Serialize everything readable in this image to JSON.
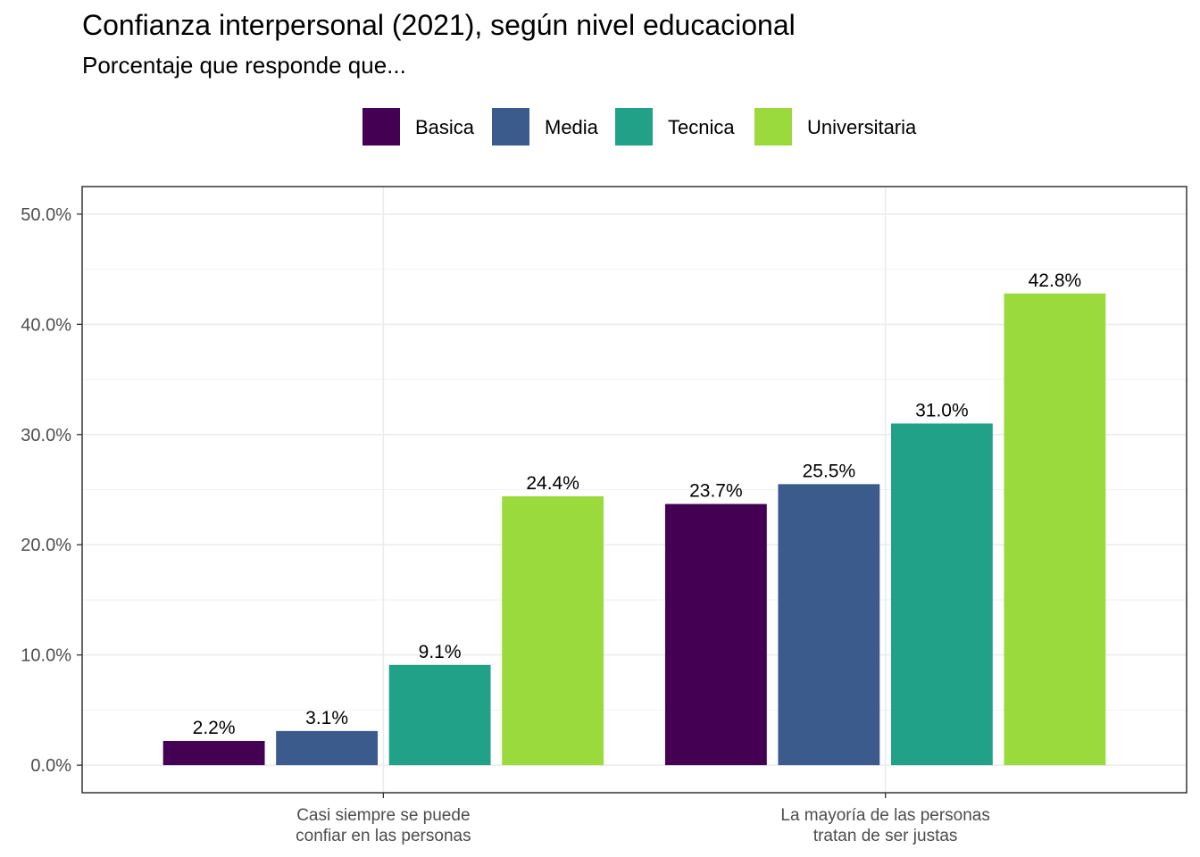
{
  "title": "Confianza interpersonal (2021), según nivel educacional",
  "subtitle": "Porcentaje que responde que...",
  "chart_data": {
    "type": "bar",
    "categories": [
      [
        "Casi siempre se puede",
        "confiar en las personas"
      ],
      [
        "La mayoría de las personas",
        "tratan de ser justas"
      ]
    ],
    "series": [
      {
        "name": "Basica",
        "color": "#440154",
        "values": [
          2.2,
          23.7
        ],
        "labels": [
          "2.2%",
          "23.7%"
        ]
      },
      {
        "name": "Media",
        "color": "#3B5B8D",
        "values": [
          3.1,
          25.5
        ],
        "labels": [
          "3.1%",
          "25.5%"
        ]
      },
      {
        "name": "Tecnica",
        "color": "#21A288",
        "values": [
          9.1,
          31.0
        ],
        "labels": [
          "9.1%",
          "31.0%"
        ]
      },
      {
        "name": "Universitaria",
        "color": "#9ADA3C",
        "values": [
          24.4,
          42.8
        ],
        "labels": [
          "24.4%",
          "42.8%"
        ]
      }
    ],
    "yticks": [
      "0.0%",
      "10.0%",
      "20.0%",
      "30.0%",
      "40.0%",
      "50.0%"
    ],
    "ytick_values": [
      0,
      10,
      20,
      30,
      40,
      50
    ],
    "ylim": [
      -2.5,
      52.5
    ],
    "grid": true,
    "legend_position": "top"
  }
}
